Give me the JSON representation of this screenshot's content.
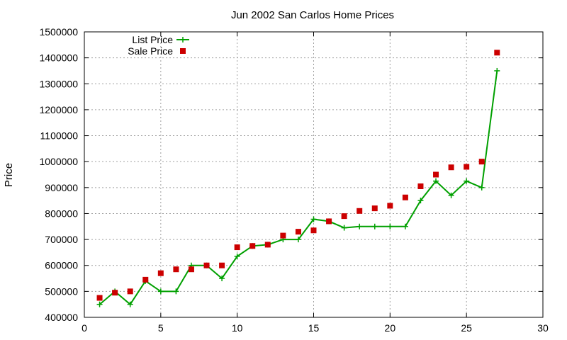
{
  "chart_data": {
    "type": "line",
    "title": "Jun 2002 San Carlos Home Prices",
    "xlabel": "",
    "ylabel": "Price",
    "xlim": [
      0,
      30
    ],
    "ylim": [
      400000,
      1500000
    ],
    "x_ticks": [
      0,
      5,
      10,
      15,
      20,
      25,
      30
    ],
    "y_ticks": [
      400000,
      500000,
      600000,
      700000,
      800000,
      900000,
      1000000,
      1100000,
      1200000,
      1300000,
      1400000,
      1500000
    ],
    "grid": true,
    "legend_position": "top-left",
    "series": [
      {
        "name": "List Price",
        "kind": "line-with-plus-markers",
        "color": "#00a000",
        "x": [
          1,
          2,
          3,
          4,
          5,
          6,
          7,
          8,
          9,
          10,
          11,
          12,
          13,
          14,
          15,
          16,
          17,
          18,
          19,
          20,
          21,
          22,
          23,
          24,
          25,
          26,
          27
        ],
        "values": [
          450000,
          500000,
          450000,
          540000,
          500000,
          500000,
          600000,
          600000,
          550000,
          635000,
          675000,
          680000,
          700000,
          700000,
          778000,
          770000,
          745000,
          750000,
          750000,
          750000,
          750000,
          850000,
          925000,
          870000,
          925000,
          900000,
          1350000
        ]
      },
      {
        "name": "Sale Price",
        "kind": "square-markers",
        "color": "#cc0000",
        "x": [
          1,
          2,
          3,
          4,
          5,
          6,
          7,
          8,
          9,
          10,
          11,
          12,
          13,
          14,
          15,
          16,
          17,
          18,
          19,
          20,
          21,
          22,
          23,
          24,
          25,
          26,
          27
        ],
        "values": [
          475000,
          495000,
          500000,
          545000,
          570000,
          585000,
          585000,
          600000,
          600000,
          670000,
          675000,
          680000,
          715000,
          730000,
          735000,
          770000,
          790000,
          810000,
          820000,
          830000,
          862000,
          905000,
          950000,
          978000,
          980000,
          1000000,
          1420000
        ]
      }
    ]
  }
}
